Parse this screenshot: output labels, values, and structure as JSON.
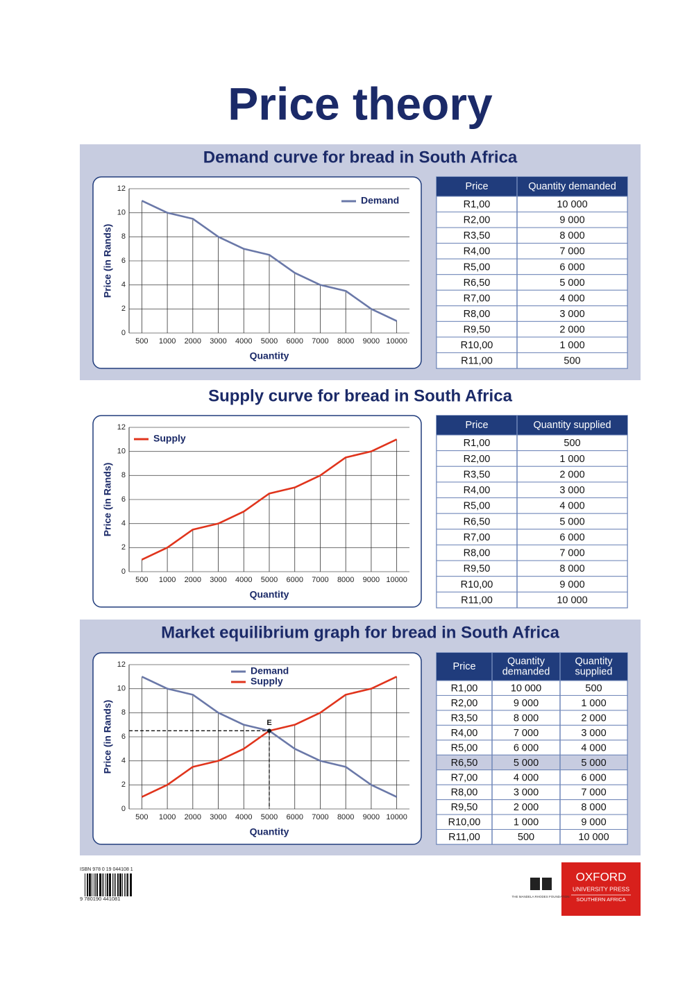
{
  "title": "Price theory",
  "chart_data": [
    {
      "type": "line",
      "title": "Demand curve for bread in South Africa",
      "x_label": "Quantity",
      "y_label": "Price (in Rands)",
      "categories": [
        "500",
        "1000",
        "2000",
        "3000",
        "4000",
        "5000",
        "6000",
        "7000",
        "8000",
        "9000",
        "10000"
      ],
      "series": [
        {
          "name": "Demand",
          "color": "#6a78a8",
          "values": [
            11,
            10,
            9.5,
            8,
            7,
            6.5,
            5,
            4,
            3.5,
            2,
            1
          ]
        }
      ],
      "ylim": [
        0,
        12
      ],
      "yticks": [
        0,
        2,
        4,
        6,
        8,
        10,
        12
      ],
      "grid": true,
      "legend": "upper right"
    },
    {
      "type": "line",
      "title": "Supply curve for bread in South Africa",
      "x_label": "Quantity",
      "y_label": "Price (in Rands)",
      "categories": [
        "500",
        "1000",
        "2000",
        "3000",
        "4000",
        "5000",
        "6000",
        "7000",
        "8000",
        "9000",
        "10000"
      ],
      "series": [
        {
          "name": "Supply",
          "color": "#e0341c",
          "values": [
            1,
            2,
            3.5,
            4,
            5,
            6.5,
            7,
            8,
            9.5,
            10,
            11
          ]
        }
      ],
      "ylim": [
        0,
        12
      ],
      "yticks": [
        0,
        2,
        4,
        6,
        8,
        10,
        12
      ],
      "grid": true,
      "legend": "upper left"
    },
    {
      "type": "line",
      "title": "Market equilibrium graph for bread in South Africa",
      "x_label": "Quantity",
      "y_label": "Price (in Rands)",
      "categories": [
        "500",
        "1000",
        "2000",
        "3000",
        "4000",
        "5000",
        "6000",
        "7000",
        "8000",
        "9000",
        "10000"
      ],
      "series": [
        {
          "name": "Demand",
          "color": "#6a78a8",
          "values": [
            11,
            10,
            9.5,
            8,
            7,
            6.5,
            5,
            4,
            3.5,
            2,
            1
          ]
        },
        {
          "name": "Supply",
          "color": "#e0341c",
          "values": [
            1,
            2,
            3.5,
            4,
            5,
            6.5,
            7,
            8,
            9.5,
            10,
            11
          ]
        }
      ],
      "ylim": [
        0,
        12
      ],
      "yticks": [
        0,
        2,
        4,
        6,
        8,
        10,
        12
      ],
      "grid": true,
      "legend": "upper center",
      "annotation": {
        "text": "E",
        "x": "5000",
        "y": 6.5
      }
    }
  ],
  "tables": [
    {
      "headers": [
        "Price",
        "Quantity demanded"
      ],
      "rows": [
        [
          "R1,00",
          "10 000"
        ],
        [
          "R2,00",
          "9 000"
        ],
        [
          "R3,50",
          "8 000"
        ],
        [
          "R4,00",
          "7 000"
        ],
        [
          "R5,00",
          "6 000"
        ],
        [
          "R6,50",
          "5 000"
        ],
        [
          "R7,00",
          "4 000"
        ],
        [
          "R8,00",
          "3 000"
        ],
        [
          "R9,50",
          "2 000"
        ],
        [
          "R10,00",
          "1 000"
        ],
        [
          "R11,00",
          "500"
        ]
      ]
    },
    {
      "headers": [
        "Price",
        "Quantity supplied"
      ],
      "rows": [
        [
          "R1,00",
          "500"
        ],
        [
          "R2,00",
          "1 000"
        ],
        [
          "R3,50",
          "2 000"
        ],
        [
          "R4,00",
          "3 000"
        ],
        [
          "R5,00",
          "4 000"
        ],
        [
          "R6,50",
          "5 000"
        ],
        [
          "R7,00",
          "6 000"
        ],
        [
          "R8,00",
          "7 000"
        ],
        [
          "R9,50",
          "8 000"
        ],
        [
          "R10,00",
          "9 000"
        ],
        [
          "R11,00",
          "10 000"
        ]
      ]
    },
    {
      "headers": [
        "Price",
        "Quantity demanded",
        "Quantity supplied"
      ],
      "highlight_row": 5,
      "rows": [
        [
          "R1,00",
          "10 000",
          "500"
        ],
        [
          "R2,00",
          "9 000",
          "1 000"
        ],
        [
          "R3,50",
          "8 000",
          "2 000"
        ],
        [
          "R4,00",
          "7 000",
          "3 000"
        ],
        [
          "R5,00",
          "6 000",
          "4 000"
        ],
        [
          "R6,50",
          "5 000",
          "5 000"
        ],
        [
          "R7,00",
          "4 000",
          "6 000"
        ],
        [
          "R8,00",
          "3 000",
          "7 000"
        ],
        [
          "R9,50",
          "2 000",
          "8 000"
        ],
        [
          "R10,00",
          "1 000",
          "9 000"
        ],
        [
          "R11,00",
          "500",
          "10 000"
        ]
      ]
    }
  ],
  "footer": {
    "isbn": "ISBN 978 0 19 044108 1",
    "barcode_digits": "9 780190 441081",
    "foundation": "THE MANDELA RHODES FOUNDATION",
    "publisher": [
      "OXFORD",
      "UNIVERSITY PRESS",
      "SOUTHERN AFRICA"
    ]
  }
}
